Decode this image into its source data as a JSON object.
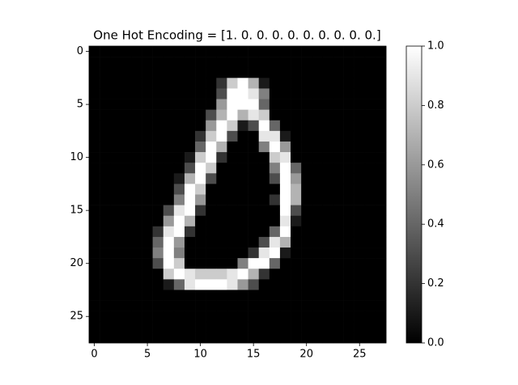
{
  "chart_data": {
    "type": "heatmap",
    "title": "One Hot Encoding = [1. 0. 0. 0. 0. 0. 0. 0. 0. 0.]",
    "colormap": "gray",
    "xlim": [
      -0.5,
      27.5
    ],
    "ylim": [
      27.5,
      -0.5
    ],
    "xticks": [
      0,
      5,
      10,
      15,
      20,
      25
    ],
    "yticks": [
      0,
      5,
      10,
      15,
      20,
      25
    ],
    "colorbar": {
      "lim": [
        0,
        1
      ],
      "ticks": [
        {
          "value": 0,
          "label": "0.0"
        },
        {
          "value": 0.2,
          "label": "0.2"
        },
        {
          "value": 0.4,
          "label": "0.4"
        },
        {
          "value": 0.6,
          "label": "0.6"
        },
        {
          "value": 0.8,
          "label": "0.8"
        },
        {
          "value": 1,
          "label": "1.0"
        }
      ]
    },
    "z": [
      [
        0,
        0,
        0,
        0,
        0,
        0,
        0,
        0,
        0,
        0,
        0,
        0,
        0,
        0,
        0,
        0,
        0,
        0,
        0,
        0,
        0,
        0,
        0,
        0,
        0,
        0,
        0,
        0
      ],
      [
        0,
        0,
        0,
        0,
        0,
        0,
        0,
        0,
        0,
        0,
        0,
        0,
        0,
        0,
        0,
        0,
        0,
        0,
        0,
        0,
        0,
        0,
        0,
        0,
        0,
        0,
        0,
        0
      ],
      [
        0,
        0,
        0,
        0,
        0,
        0,
        0,
        0,
        0,
        0,
        0,
        0,
        0,
        0,
        0,
        0,
        0,
        0,
        0,
        0,
        0,
        0,
        0,
        0,
        0,
        0,
        0,
        0
      ],
      [
        0,
        0,
        0,
        0,
        0,
        0,
        0,
        0,
        0,
        0,
        0,
        0,
        0.2,
        0.8,
        1,
        0.7,
        0.1,
        0,
        0,
        0,
        0,
        0,
        0,
        0,
        0,
        0,
        0,
        0
      ],
      [
        0,
        0,
        0,
        0,
        0,
        0,
        0,
        0,
        0,
        0,
        0,
        0,
        0.3,
        1,
        1,
        0.9,
        0.5,
        0,
        0,
        0,
        0,
        0,
        0,
        0,
        0,
        0,
        0,
        0
      ],
      [
        0,
        0,
        0,
        0,
        0,
        0,
        0,
        0,
        0,
        0,
        0,
        0,
        0.6,
        1,
        1,
        1,
        0.4,
        0,
        0,
        0,
        0,
        0,
        0,
        0,
        0,
        0,
        0,
        0
      ],
      [
        0,
        0,
        0,
        0,
        0,
        0,
        0,
        0,
        0,
        0,
        0,
        0.3,
        0.7,
        1,
        0.7,
        0.9,
        0.8,
        0,
        0,
        0,
        0,
        0,
        0,
        0,
        0,
        0,
        0,
        0
      ],
      [
        0,
        0,
        0,
        0,
        0,
        0,
        0,
        0,
        0,
        0,
        0,
        0.6,
        1,
        0.8,
        0.1,
        0.3,
        1,
        0.4,
        0,
        0,
        0,
        0,
        0,
        0,
        0,
        0,
        0,
        0
      ],
      [
        0,
        0,
        0,
        0,
        0,
        0,
        0,
        0,
        0,
        0,
        0.2,
        0.8,
        1,
        0.3,
        0,
        0,
        0.9,
        0.9,
        0.1,
        0,
        0,
        0,
        0,
        0,
        0,
        0,
        0,
        0
      ],
      [
        0,
        0,
        0,
        0,
        0,
        0,
        0,
        0,
        0,
        0,
        0.4,
        1,
        0.7,
        0,
        0,
        0,
        0.5,
        1,
        0.6,
        0,
        0,
        0,
        0,
        0,
        0,
        0,
        0,
        0
      ],
      [
        0,
        0,
        0,
        0,
        0,
        0,
        0,
        0,
        0,
        0.1,
        0.8,
        1,
        0.2,
        0,
        0,
        0,
        0,
        0.8,
        0.9,
        0,
        0,
        0,
        0,
        0,
        0,
        0,
        0,
        0
      ],
      [
        0,
        0,
        0,
        0,
        0,
        0,
        0,
        0,
        0,
        0.3,
        1,
        0.8,
        0,
        0,
        0,
        0,
        0,
        0.5,
        1,
        0.4,
        0,
        0,
        0,
        0,
        0,
        0,
        0,
        0
      ],
      [
        0,
        0,
        0,
        0,
        0,
        0,
        0,
        0,
        0.1,
        0.7,
        1,
        0.3,
        0,
        0,
        0,
        0,
        0,
        0.3,
        1,
        0.6,
        0,
        0,
        0,
        0,
        0,
        0,
        0,
        0
      ],
      [
        0,
        0,
        0,
        0,
        0,
        0,
        0,
        0,
        0.3,
        1,
        0.8,
        0,
        0,
        0,
        0,
        0,
        0,
        0,
        1,
        0.7,
        0,
        0,
        0,
        0,
        0,
        0,
        0,
        0
      ],
      [
        0,
        0,
        0,
        0,
        0,
        0,
        0,
        0,
        0.5,
        1,
        0.6,
        0,
        0,
        0,
        0,
        0,
        0,
        0.2,
        1,
        0.7,
        0,
        0,
        0,
        0,
        0,
        0,
        0,
        0
      ],
      [
        0,
        0,
        0,
        0,
        0,
        0,
        0,
        0.3,
        0.9,
        1,
        0.2,
        0,
        0,
        0,
        0,
        0,
        0,
        0,
        1,
        0.3,
        0,
        0,
        0,
        0,
        0,
        0,
        0,
        0
      ],
      [
        0,
        0,
        0,
        0,
        0,
        0,
        0,
        0.6,
        1,
        0.7,
        0,
        0,
        0,
        0,
        0,
        0,
        0,
        0,
        0.9,
        0.1,
        0,
        0,
        0,
        0,
        0,
        0,
        0,
        0
      ],
      [
        0,
        0,
        0,
        0,
        0,
        0,
        0.2,
        0.9,
        1,
        0.2,
        0,
        0,
        0,
        0,
        0,
        0,
        0,
        0.4,
        1,
        0,
        0,
        0,
        0,
        0,
        0,
        0,
        0,
        0
      ],
      [
        0,
        0,
        0,
        0,
        0,
        0,
        0.4,
        1,
        0.6,
        0,
        0,
        0,
        0,
        0,
        0,
        0,
        0.3,
        0.9,
        0.7,
        0,
        0,
        0,
        0,
        0,
        0,
        0,
        0,
        0
      ],
      [
        0,
        0,
        0,
        0,
        0,
        0,
        0.5,
        1,
        0.5,
        0,
        0,
        0,
        0,
        0,
        0,
        0.2,
        0.9,
        1,
        0.1,
        0,
        0,
        0,
        0,
        0,
        0,
        0,
        0,
        0
      ],
      [
        0,
        0,
        0,
        0,
        0,
        0,
        0.3,
        1,
        0.8,
        0,
        0,
        0,
        0,
        0,
        0.5,
        1,
        1,
        0.4,
        0,
        0,
        0,
        0,
        0,
        0,
        0,
        0,
        0,
        0
      ],
      [
        0,
        0,
        0,
        0,
        0,
        0,
        0,
        0.8,
        1,
        0.9,
        0.8,
        0.8,
        0.8,
        0.9,
        1,
        0.7,
        0.2,
        0,
        0,
        0,
        0,
        0,
        0,
        0,
        0,
        0,
        0,
        0
      ],
      [
        0,
        0,
        0,
        0,
        0,
        0,
        0,
        0.1,
        0.4,
        0.9,
        1,
        1,
        1,
        0.9,
        0.6,
        0.3,
        0,
        0,
        0,
        0,
        0,
        0,
        0,
        0,
        0,
        0,
        0,
        0
      ],
      [
        0,
        0,
        0,
        0,
        0,
        0,
        0,
        0,
        0,
        0,
        0,
        0,
        0,
        0,
        0,
        0,
        0,
        0,
        0,
        0,
        0,
        0,
        0,
        0,
        0,
        0,
        0,
        0
      ],
      [
        0,
        0,
        0,
        0,
        0,
        0,
        0,
        0,
        0,
        0,
        0,
        0,
        0,
        0,
        0,
        0,
        0,
        0,
        0,
        0,
        0,
        0,
        0,
        0,
        0,
        0,
        0,
        0
      ],
      [
        0,
        0,
        0,
        0,
        0,
        0,
        0,
        0,
        0,
        0,
        0,
        0,
        0,
        0,
        0,
        0,
        0,
        0,
        0,
        0,
        0,
        0,
        0,
        0,
        0,
        0,
        0,
        0
      ],
      [
        0,
        0,
        0,
        0,
        0,
        0,
        0,
        0,
        0,
        0,
        0,
        0,
        0,
        0,
        0,
        0,
        0,
        0,
        0,
        0,
        0,
        0,
        0,
        0,
        0,
        0,
        0,
        0
      ],
      [
        0,
        0,
        0,
        0,
        0,
        0,
        0,
        0,
        0,
        0,
        0,
        0,
        0,
        0,
        0,
        0,
        0,
        0,
        0,
        0,
        0,
        0,
        0,
        0,
        0,
        0,
        0,
        0
      ]
    ]
  }
}
